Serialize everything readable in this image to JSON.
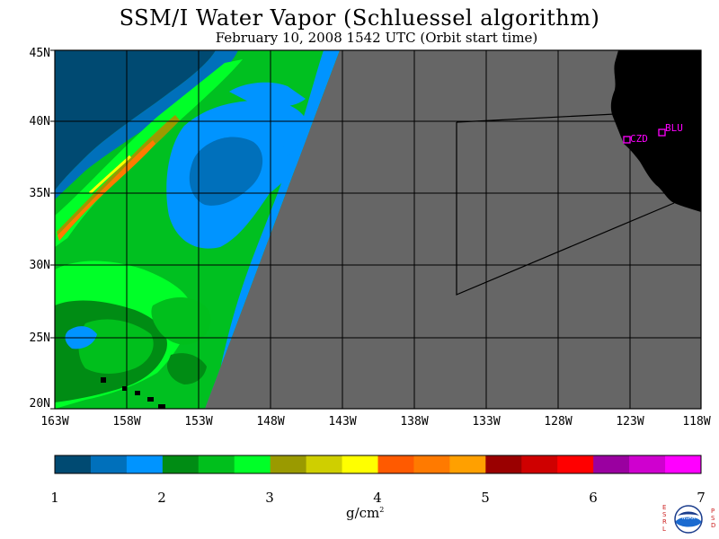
{
  "title": "SSM/I Water Vapor (Schluessel algorithm)",
  "subtitle": "February 10, 2008  1542 UTC  (Orbit start time)",
  "latitude_labels": [
    "45N",
    "40N",
    "35N",
    "30N",
    "25N",
    "20N"
  ],
  "longitude_labels": [
    "163W",
    "158W",
    "153W",
    "148W",
    "143W",
    "138W",
    "133W",
    "128W",
    "123W",
    "118W"
  ],
  "stations": [
    {
      "label": "CZD",
      "color": "#ff00ff"
    },
    {
      "label": "BLU",
      "color": "#ff00ff"
    }
  ],
  "colorbar": {
    "tick_labels": [
      "1",
      "2",
      "3",
      "4",
      "5",
      "6",
      "7"
    ],
    "unit": "g/cm",
    "unit_superscript": "2",
    "colors": [
      "#004a72",
      "#0070bb",
      "#0094ff",
      "#008c14",
      "#00bf1c",
      "#00ff28",
      "#9a9a00",
      "#cfcf00",
      "#ffff00",
      "#ff5a00",
      "#ff7a00",
      "#ffa000",
      "#9a0000",
      "#cf0000",
      "#ff0000",
      "#9a00a0",
      "#cf00cf",
      "#ff00ff"
    ]
  },
  "logo": {
    "left_letters": "ESRL",
    "right_letters": "PSD",
    "center_text": "NOAA"
  },
  "colors": {
    "no_data": "#666666",
    "land": "#000000",
    "grid": "#000000",
    "station": "#ff00ff"
  }
}
